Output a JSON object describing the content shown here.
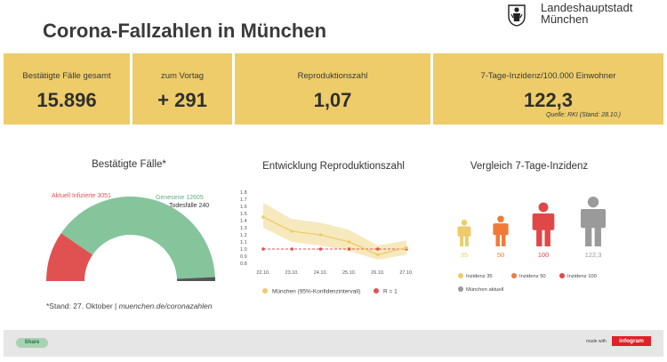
{
  "title": "Corona-Fallzahlen in München",
  "logo": {
    "line1": "Landeshauptstadt",
    "line2": "München"
  },
  "kpis": [
    {
      "label": "Bestätigte Fälle gesamt",
      "value": "15.896"
    },
    {
      "label": "zum Vortag",
      "value": "+ 291"
    },
    {
      "label": "Reproduktionszahl",
      "value": "1,07"
    },
    {
      "label": "7-Tage-Inzidenz/100.000 Einwohner",
      "value": "122,3",
      "source": "Quelle: RKI (Stand: 28.10.)"
    }
  ],
  "gauge": {
    "title": "Bestätigte Fälle*",
    "footnote_prefix": "*Stand: 27. Oktober | ",
    "footnote_link": "muenchen.de/coronazahlen",
    "colors": {
      "active": "#e05252",
      "recovered": "#86c49c",
      "deaths": "#555555"
    }
  },
  "r_chart": {
    "title": "Entwicklung Reproduktionszahl",
    "colors": {
      "muenchen": "#edcc69",
      "band": "#f7e9be",
      "r1": "#e05252"
    }
  },
  "incidence": {
    "title": "Vergleich 7-Tage-Inzidenz",
    "figures": [
      {
        "value": "35",
        "color": "#edcc69",
        "level": 35
      },
      {
        "value": "50",
        "color": "#f07a3a",
        "level": 50
      },
      {
        "value": "100",
        "color": "#e04848",
        "level": 100
      },
      {
        "value": "122,3",
        "color": "#9a9a9a",
        "level": 122.3
      }
    ],
    "legend": [
      {
        "label": "Inzidenz 35",
        "color": "#edcc69"
      },
      {
        "label": "Inzidenz 50",
        "color": "#f07a3a"
      },
      {
        "label": "Inzidenz 100",
        "color": "#e04848"
      },
      {
        "label": "München aktuell",
        "color": "#9a9a9a"
      }
    ]
  },
  "footer": {
    "share_label": "Share",
    "made_with": "made with",
    "brand": "infogram"
  },
  "chart_data": [
    {
      "type": "pie",
      "title": "Bestätigte Fälle*",
      "categories": [
        "Aktuell Infizierte",
        "Genesene",
        "Todesfälle"
      ],
      "values": [
        3051,
        12605,
        240
      ],
      "labels": [
        "Aktuell Infizierte 3051",
        "Genesene 12605",
        "Todesfälle 240"
      ]
    },
    {
      "type": "line",
      "title": "Entwicklung Reproduktionszahl",
      "x": [
        "22.10.",
        "23.10.",
        "24.10.",
        "25.10.",
        "26.10.",
        "27.10."
      ],
      "series": [
        {
          "name": "München (95%-Konfidenzintervall)",
          "values": [
            1.45,
            1.25,
            1.2,
            1.1,
            0.92,
            1.02
          ],
          "lower": [
            1.3,
            1.1,
            1.05,
            0.97,
            0.85,
            0.92
          ],
          "upper": [
            1.65,
            1.42,
            1.37,
            1.27,
            1.05,
            1.12
          ]
        },
        {
          "name": "R = 1",
          "values": [
            1,
            1,
            1,
            1,
            1,
            1
          ]
        }
      ],
      "y_ticks": [
        "1.8",
        "1.7",
        "1.6",
        "1.5",
        "1.4",
        "1.3",
        "1.2",
        "1.1",
        "1.0",
        "0.9",
        "0.8"
      ],
      "ylim": [
        0.8,
        1.8
      ]
    }
  ]
}
